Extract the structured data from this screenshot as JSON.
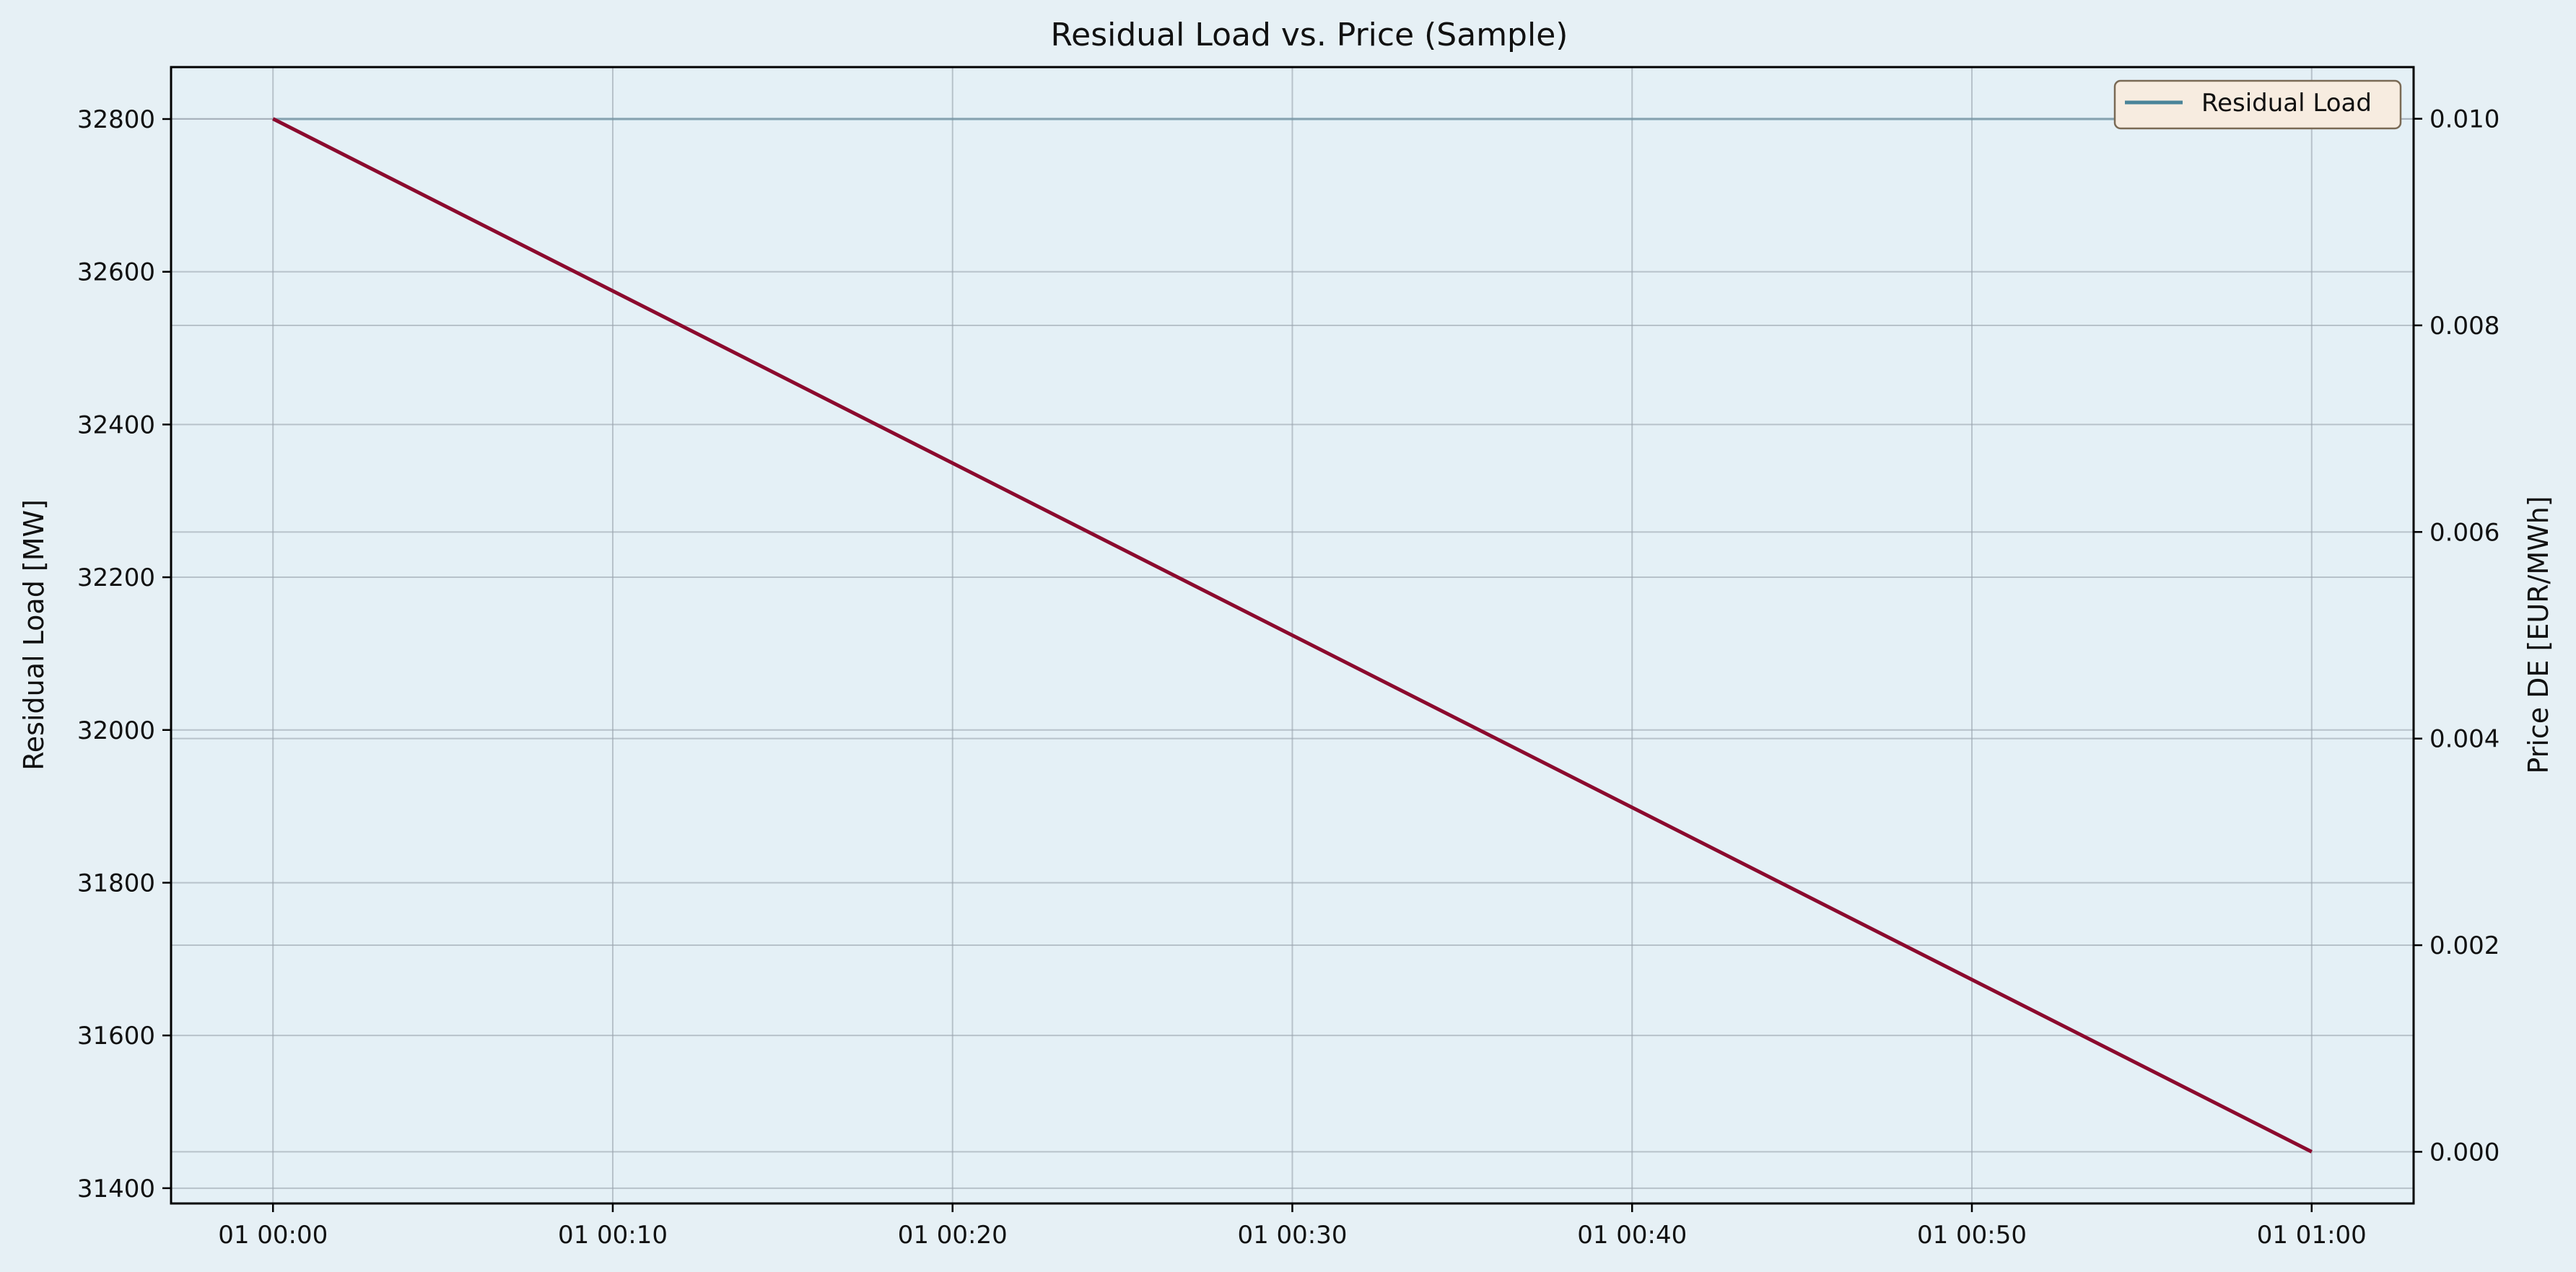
{
  "chart_data": {
    "type": "line",
    "title": "Residual Load vs. Price (Sample)",
    "ylabel": "Residual Load [MW]",
    "y2label": "Price DE [EUR/MWh]",
    "xlabel": "",
    "x": [
      "01 00:00",
      "01 01:00"
    ],
    "xticks": [
      "01 00:00",
      "01 00:10",
      "01 00:20",
      "01 00:30",
      "01 00:40",
      "01 00:50",
      "01 01:00"
    ],
    "xlim_minutes": [
      -3,
      63
    ],
    "ylim": [
      31380,
      32868
    ],
    "yticks": [
      31400,
      31600,
      31800,
      32000,
      32200,
      32400,
      32600,
      32800
    ],
    "y2lim": [
      -0.0005,
      0.0105
    ],
    "y2ticks": [
      0.0,
      0.002,
      0.004,
      0.006,
      0.008,
      0.01
    ],
    "series": [
      {
        "name": "Residual Load",
        "axis": "left",
        "color": "#4a8499",
        "x_minutes": [
          0,
          60
        ],
        "values": [
          32800,
          32800
        ]
      },
      {
        "axis": "right",
        "color": "#8b0a2e",
        "x_minutes": [
          0,
          60
        ],
        "values": [
          0.01,
          0.0
        ]
      }
    ],
    "grid": true,
    "legend": "top-right"
  },
  "colors": {
    "background": "#e6f0f5",
    "plot_background": "#e4f0f6",
    "legend_background": "#f7ece0",
    "legend_border": "#7a6a55",
    "grid": "#9aa4ad"
  }
}
